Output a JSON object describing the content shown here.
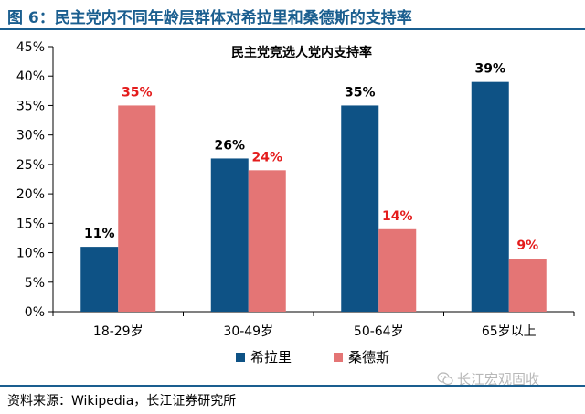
{
  "figure": {
    "title": "图 6：民主党内不同年龄层群体对希拉里和桑德斯的支持率",
    "source": "资料来源：Wikipedia，长江证券研究所",
    "watermark": "长江宏观固收",
    "watermark_icon": "wechat-icon"
  },
  "colors": {
    "accent": "#1a5e8f",
    "hillary": "#0e5285",
    "sanders": "#e47575",
    "sanders_label": "#e41c1c"
  },
  "chart_data": {
    "type": "bar",
    "title": "民主党竞选人党内支持率",
    "categories": [
      "18-29岁",
      "30-49岁",
      "50-64岁",
      "65岁以上"
    ],
    "series": [
      {
        "name": "希拉里",
        "values": [
          11,
          26,
          35,
          39
        ],
        "labels": [
          "11%",
          "26%",
          "35%",
          "39%"
        ]
      },
      {
        "name": "桑德斯",
        "values": [
          35,
          24,
          14,
          9
        ],
        "labels": [
          "35%",
          "24%",
          "14%",
          "9%"
        ]
      }
    ],
    "yticks": [
      "0%",
      "5%",
      "10%",
      "15%",
      "20%",
      "25%",
      "30%",
      "35%",
      "40%",
      "45%"
    ],
    "ylim": [
      0,
      45
    ],
    "xlabel": "",
    "ylabel": "",
    "grid": false,
    "legend_position": "bottom"
  }
}
